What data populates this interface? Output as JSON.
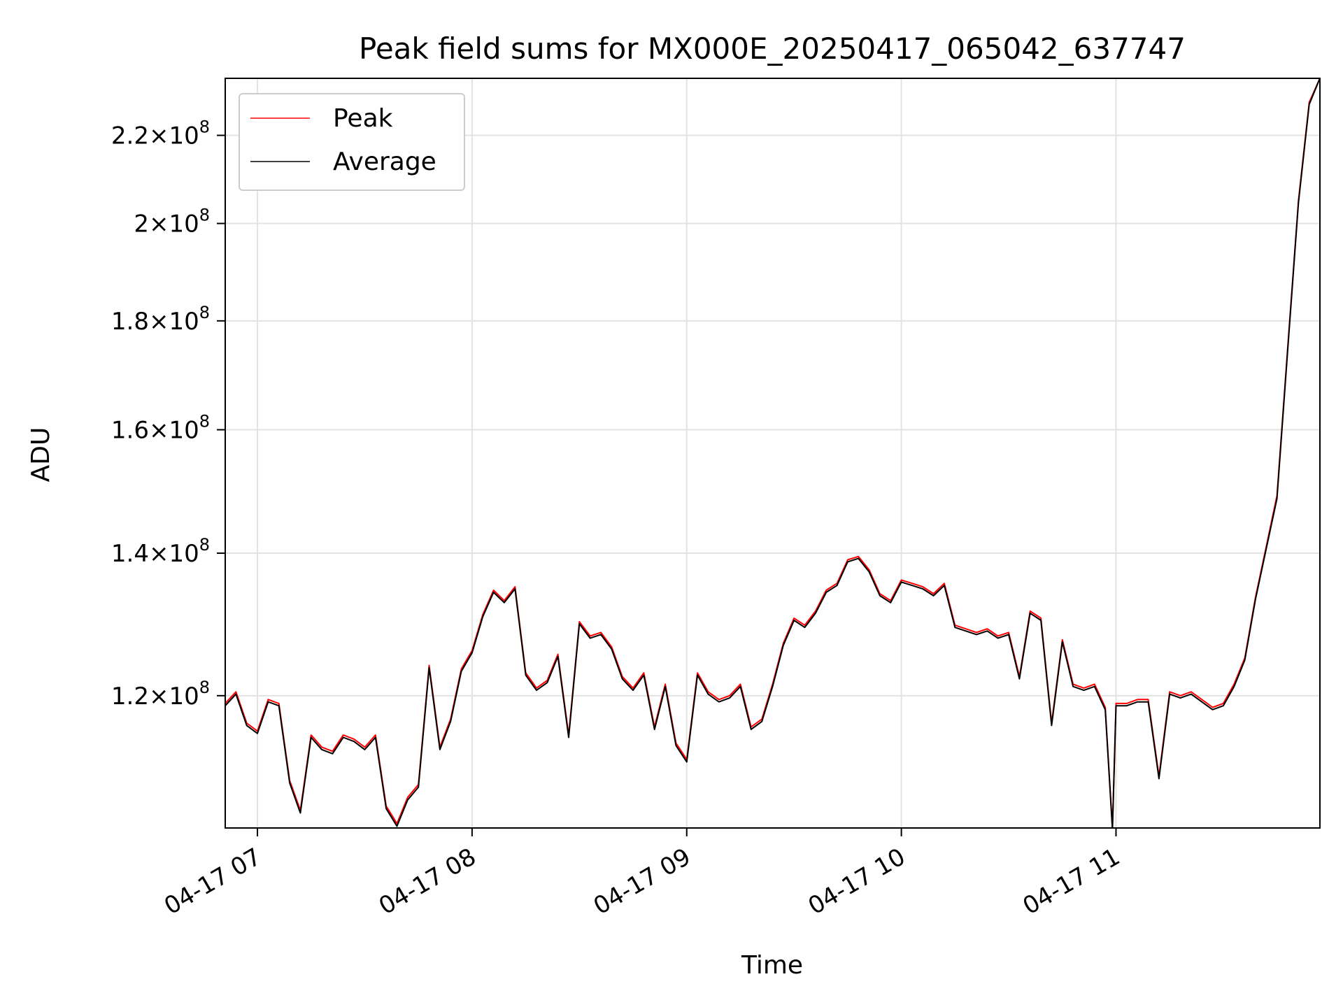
{
  "chart_data": {
    "type": "line",
    "title": "Peak field sums for MX000E_20250417_065042_637747",
    "xlabel": "Time",
    "ylabel": "ADU",
    "y_scale": "log",
    "xlim": [
      "04-17 06:51",
      "04-17 11:57"
    ],
    "ylim": [
      104000000,
      234000000
    ],
    "x_ticks": [
      "04-17 07",
      "04-17 08",
      "04-17 09",
      "04-17 10",
      "04-17 11"
    ],
    "y_ticks": [
      {
        "value": 120000000,
        "mantissa": "1.2",
        "exponent": "8"
      },
      {
        "value": 140000000,
        "mantissa": "1.4",
        "exponent": "8"
      },
      {
        "value": 160000000,
        "mantissa": "1.6",
        "exponent": "8"
      },
      {
        "value": 180000000,
        "mantissa": "1.8",
        "exponent": "8"
      },
      {
        "value": 200000000,
        "mantissa": "2",
        "exponent": "8"
      },
      {
        "value": 220000000,
        "mantissa": "2.2",
        "exponent": "8"
      }
    ],
    "grid": true,
    "legend_position": "top-left",
    "x": [
      "06:51",
      "06:54",
      "06:57",
      "07:00",
      "07:03",
      "07:06",
      "07:09",
      "07:12",
      "07:15",
      "07:18",
      "07:21",
      "07:24",
      "07:27",
      "07:30",
      "07:33",
      "07:36",
      "07:39",
      "07:42",
      "07:45",
      "07:48",
      "07:51",
      "07:54",
      "07:57",
      "08:00",
      "08:03",
      "08:06",
      "08:09",
      "08:12",
      "08:15",
      "08:18",
      "08:21",
      "08:24",
      "08:27",
      "08:30",
      "08:33",
      "08:36",
      "08:39",
      "08:42",
      "08:45",
      "08:48",
      "08:51",
      "08:54",
      "08:57",
      "09:00",
      "09:03",
      "09:06",
      "09:09",
      "09:12",
      "09:15",
      "09:18",
      "09:21",
      "09:24",
      "09:27",
      "09:30",
      "09:33",
      "09:36",
      "09:39",
      "09:42",
      "09:45",
      "09:48",
      "09:51",
      "09:54",
      "09:57",
      "10:00",
      "10:03",
      "10:06",
      "10:09",
      "10:12",
      "10:15",
      "10:18",
      "10:21",
      "10:24",
      "10:27",
      "10:30",
      "10:33",
      "10:36",
      "10:39",
      "10:42",
      "10:45",
      "10:48",
      "10:51",
      "10:54",
      "10:57",
      "10:59",
      "11:00",
      "11:03",
      "11:06",
      "11:09",
      "11:12",
      "11:15",
      "11:18",
      "11:21",
      "11:24",
      "11:27",
      "11:30",
      "11:33",
      "11:36",
      "11:39",
      "11:42",
      "11:45",
      "11:48",
      "11:51",
      "11:54",
      "11:57"
    ],
    "series": [
      {
        "name": "Peak",
        "color": "#ff0000",
        "values": [
          119000000,
          120500000,
          116500000,
          115500000,
          119500000,
          119000000,
          109500000,
          106000000,
          115000000,
          113500000,
          113000000,
          115000000,
          114500000,
          113500000,
          115000000,
          106500000,
          104500000,
          107500000,
          109000000,
          124000000,
          113500000,
          117000000,
          123500000,
          126000000,
          131000000,
          134500000,
          133000000,
          135000000,
          123000000,
          121000000,
          122000000,
          125500000,
          115000000,
          130000000,
          128000000,
          128500000,
          126500000,
          122500000,
          121000000,
          123000000,
          116000000,
          121500000,
          114000000,
          112000000,
          123000000,
          120500000,
          119500000,
          120000000,
          121500000,
          116000000,
          117000000,
          121500000,
          127000000,
          130500000,
          129500000,
          131500000,
          134500000,
          135500000,
          139000000,
          139500000,
          137500000,
          134000000,
          133000000,
          136000000,
          135500000,
          135000000,
          134000000,
          135500000,
          129500000,
          129000000,
          128500000,
          129000000,
          128000000,
          128500000,
          122500000,
          131500000,
          130500000,
          116500000,
          127500000,
          121500000,
          121000000,
          121500000,
          118500000,
          104000000,
          119000000,
          119000000,
          119500000,
          119500000,
          110000000,
          120500000,
          120000000,
          120500000,
          119500000,
          118500000,
          119000000,
          121500000,
          125000000,
          133500000,
          141000000,
          149000000,
          175000000,
          205000000,
          228000000,
          234000000
        ]
      },
      {
        "name": "Average",
        "color": "#000000",
        "values": [
          118700000,
          120200000,
          116200000,
          115200000,
          119200000,
          118700000,
          109200000,
          105700000,
          114700000,
          113200000,
          112700000,
          114700000,
          114200000,
          113200000,
          114700000,
          106200000,
          104200000,
          107200000,
          108700000,
          123700000,
          113200000,
          116700000,
          123200000,
          125700000,
          130700000,
          134200000,
          132700000,
          134700000,
          122700000,
          120700000,
          121700000,
          125200000,
          114700000,
          129700000,
          127700000,
          128200000,
          126200000,
          122200000,
          120700000,
          122700000,
          115700000,
          121200000,
          113700000,
          111700000,
          122700000,
          120200000,
          119200000,
          119700000,
          121200000,
          115700000,
          116700000,
          121200000,
          126700000,
          130200000,
          129200000,
          131200000,
          134200000,
          135200000,
          138700000,
          139200000,
          137200000,
          133700000,
          132700000,
          135700000,
          135200000,
          134700000,
          133700000,
          135200000,
          129200000,
          128700000,
          128200000,
          128700000,
          127700000,
          128200000,
          122200000,
          131200000,
          130200000,
          116200000,
          127200000,
          121200000,
          120700000,
          121200000,
          118200000,
          103800000,
          118700000,
          118700000,
          119200000,
          119200000,
          109700000,
          120200000,
          119700000,
          120200000,
          119200000,
          118200000,
          118700000,
          121200000,
          124700000,
          133200000,
          140700000,
          148500000,
          174500000,
          204500000,
          227500000,
          234000000
        ]
      }
    ]
  }
}
